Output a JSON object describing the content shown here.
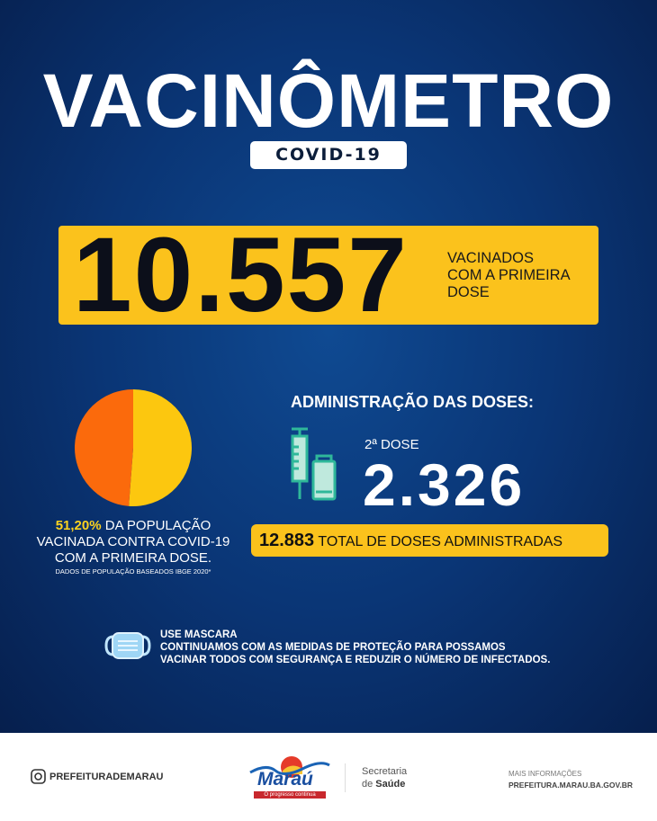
{
  "header": {
    "title": "VACINÔMETRO",
    "subtitle": "COVID-19"
  },
  "first_dose": {
    "value": "10.557",
    "label_lines": [
      "VACINADOS",
      "COM A PRIMEIRA",
      "DOSE"
    ]
  },
  "population": {
    "percent": "51,20%",
    "line1_rest": " DA POPULAÇÃO",
    "line2": "VACINADA CONTRA COVID-19",
    "line3": "COM A PRIMEIRA DOSE.",
    "note": "DADOS DE POPULAÇÃO BASEADOS IBGE 2020*"
  },
  "pie": {
    "type": "pie",
    "values": [
      51.2,
      48.8
    ],
    "colors": [
      "#fcc70f",
      "#fb6a0c"
    ]
  },
  "doses": {
    "heading": "ADMINISTRAÇÃO DAS DOSES:",
    "second_label": "2ª DOSE",
    "second_value": "2.326",
    "total_value": "12.883",
    "total_label": " TOTAL DE DOSES ADMINISTRADAS",
    "icons": [
      "syringe-icon",
      "vial-icon"
    ]
  },
  "mask": {
    "icon": "face-mask-icon",
    "lines": [
      "USE MASCARA",
      "CONTINUAMOS COM AS MEDIDAS DE PROTEÇÃO PARA POSSAMOS",
      "VACINAR TODOS COM SEGURANÇA E REDUZIR O NÚMERO DE INFECTADOS."
    ]
  },
  "footer": {
    "instagram": "PREFEITURADEMARAU",
    "logo_text": "Maraú",
    "logo_slogan": "O progresso continua",
    "dept_line1": "Secretaria",
    "dept_line2_prefix": "de ",
    "dept_line2_bold": "Saúde",
    "info_label": "MAIS INFORMAÇÕES",
    "info_url": "PREFEITURA.MARAU.BA.GOV.BR"
  },
  "colors": {
    "yellow": "#fbc21c",
    "blue": "#0a3575",
    "teal": "#2fb89a"
  }
}
